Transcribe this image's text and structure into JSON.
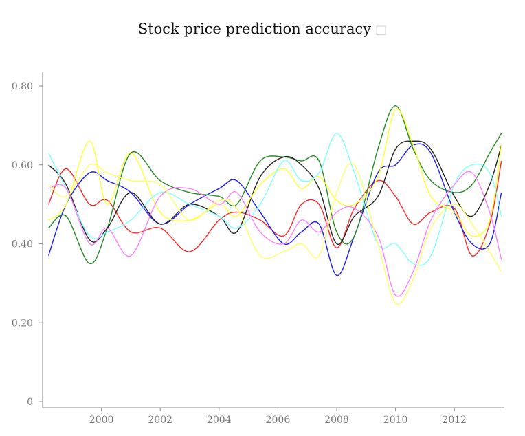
{
  "title": "Stock price prediction accuracy",
  "chart_data": {
    "type": "line",
    "title": "Stock price prediction accuracy",
    "xlabel": "",
    "ylabel": "",
    "xlim": [
      1998.0,
      2013.7
    ],
    "ylim": [
      0,
      0.8
    ],
    "x_ticks": [
      "2000",
      "2002",
      "2004",
      "2006",
      "2008",
      "2010",
      "2012"
    ],
    "y_ticks": [
      "0",
      "0.20",
      "0.40",
      "0.60",
      "0.80"
    ],
    "x": [
      1998.2,
      1998.8,
      1999.6,
      2000.2,
      2001.0,
      2002.0,
      2003.0,
      2004.0,
      2004.6,
      2005.4,
      2006.2,
      2006.8,
      2007.4,
      2008.0,
      2008.6,
      2009.4,
      2010.0,
      2010.6,
      2011.2,
      2012.0,
      2012.6,
      2013.2,
      2013.6
    ],
    "series": [
      {
        "color": "#ff2a2a",
        "values": [
          0.5,
          0.59,
          0.5,
          0.51,
          0.43,
          0.44,
          0.38,
          0.46,
          0.48,
          0.46,
          0.42,
          0.5,
          0.5,
          0.39,
          0.49,
          0.56,
          0.52,
          0.45,
          0.48,
          0.49,
          0.37,
          0.45,
          0.61
        ]
      },
      {
        "color": "#1a1aff",
        "values": [
          0.37,
          0.5,
          0.58,
          0.56,
          0.53,
          0.45,
          0.5,
          0.54,
          0.56,
          0.48,
          0.4,
          0.43,
          0.45,
          0.32,
          0.42,
          0.58,
          0.6,
          0.65,
          0.63,
          0.48,
          0.4,
          0.4,
          0.53
        ]
      },
      {
        "color": "#228b22",
        "values": [
          0.44,
          0.47,
          0.35,
          0.44,
          0.63,
          0.56,
          0.53,
          0.52,
          0.5,
          0.61,
          0.62,
          0.61,
          0.61,
          0.43,
          0.42,
          0.64,
          0.75,
          0.64,
          0.56,
          0.53,
          0.55,
          0.63,
          0.68
        ]
      },
      {
        "color": "#222222",
        "values": [
          0.6,
          0.55,
          0.41,
          0.44,
          0.53,
          0.45,
          0.5,
          0.47,
          0.43,
          0.57,
          0.62,
          0.6,
          0.54,
          0.4,
          0.47,
          0.52,
          0.64,
          0.66,
          0.64,
          0.52,
          0.47,
          0.55,
          0.65
        ]
      },
      {
        "color": "#ffff33",
        "values": [
          0.46,
          0.5,
          0.66,
          0.5,
          0.63,
          0.48,
          0.46,
          0.5,
          0.47,
          0.55,
          0.59,
          0.54,
          0.57,
          0.51,
          0.5,
          0.57,
          0.74,
          0.65,
          0.52,
          0.48,
          0.42,
          0.46,
          0.65
        ]
      },
      {
        "color": "#80ffff",
        "values": [
          0.63,
          0.54,
          0.42,
          0.43,
          0.46,
          0.53,
          0.5,
          0.47,
          0.44,
          0.5,
          0.61,
          0.56,
          0.58,
          0.68,
          0.58,
          0.4,
          0.4,
          0.35,
          0.37,
          0.55,
          0.6,
          0.58,
          0.47
        ]
      },
      {
        "color": "#ff80ff",
        "values": [
          0.54,
          0.54,
          0.4,
          0.44,
          0.37,
          0.52,
          0.54,
          0.5,
          0.53,
          0.43,
          0.4,
          0.46,
          0.43,
          0.48,
          0.49,
          0.42,
          0.27,
          0.33,
          0.46,
          0.55,
          0.58,
          0.48,
          0.36
        ]
      },
      {
        "color": "#ffff66",
        "values": [
          0.55,
          0.52,
          0.6,
          0.58,
          0.56,
          0.55,
          0.46,
          0.51,
          0.49,
          0.37,
          0.38,
          0.4,
          0.37,
          0.53,
          0.6,
          0.4,
          0.25,
          0.31,
          0.44,
          0.5,
          0.45,
          0.38,
          0.33
        ]
      }
    ]
  }
}
